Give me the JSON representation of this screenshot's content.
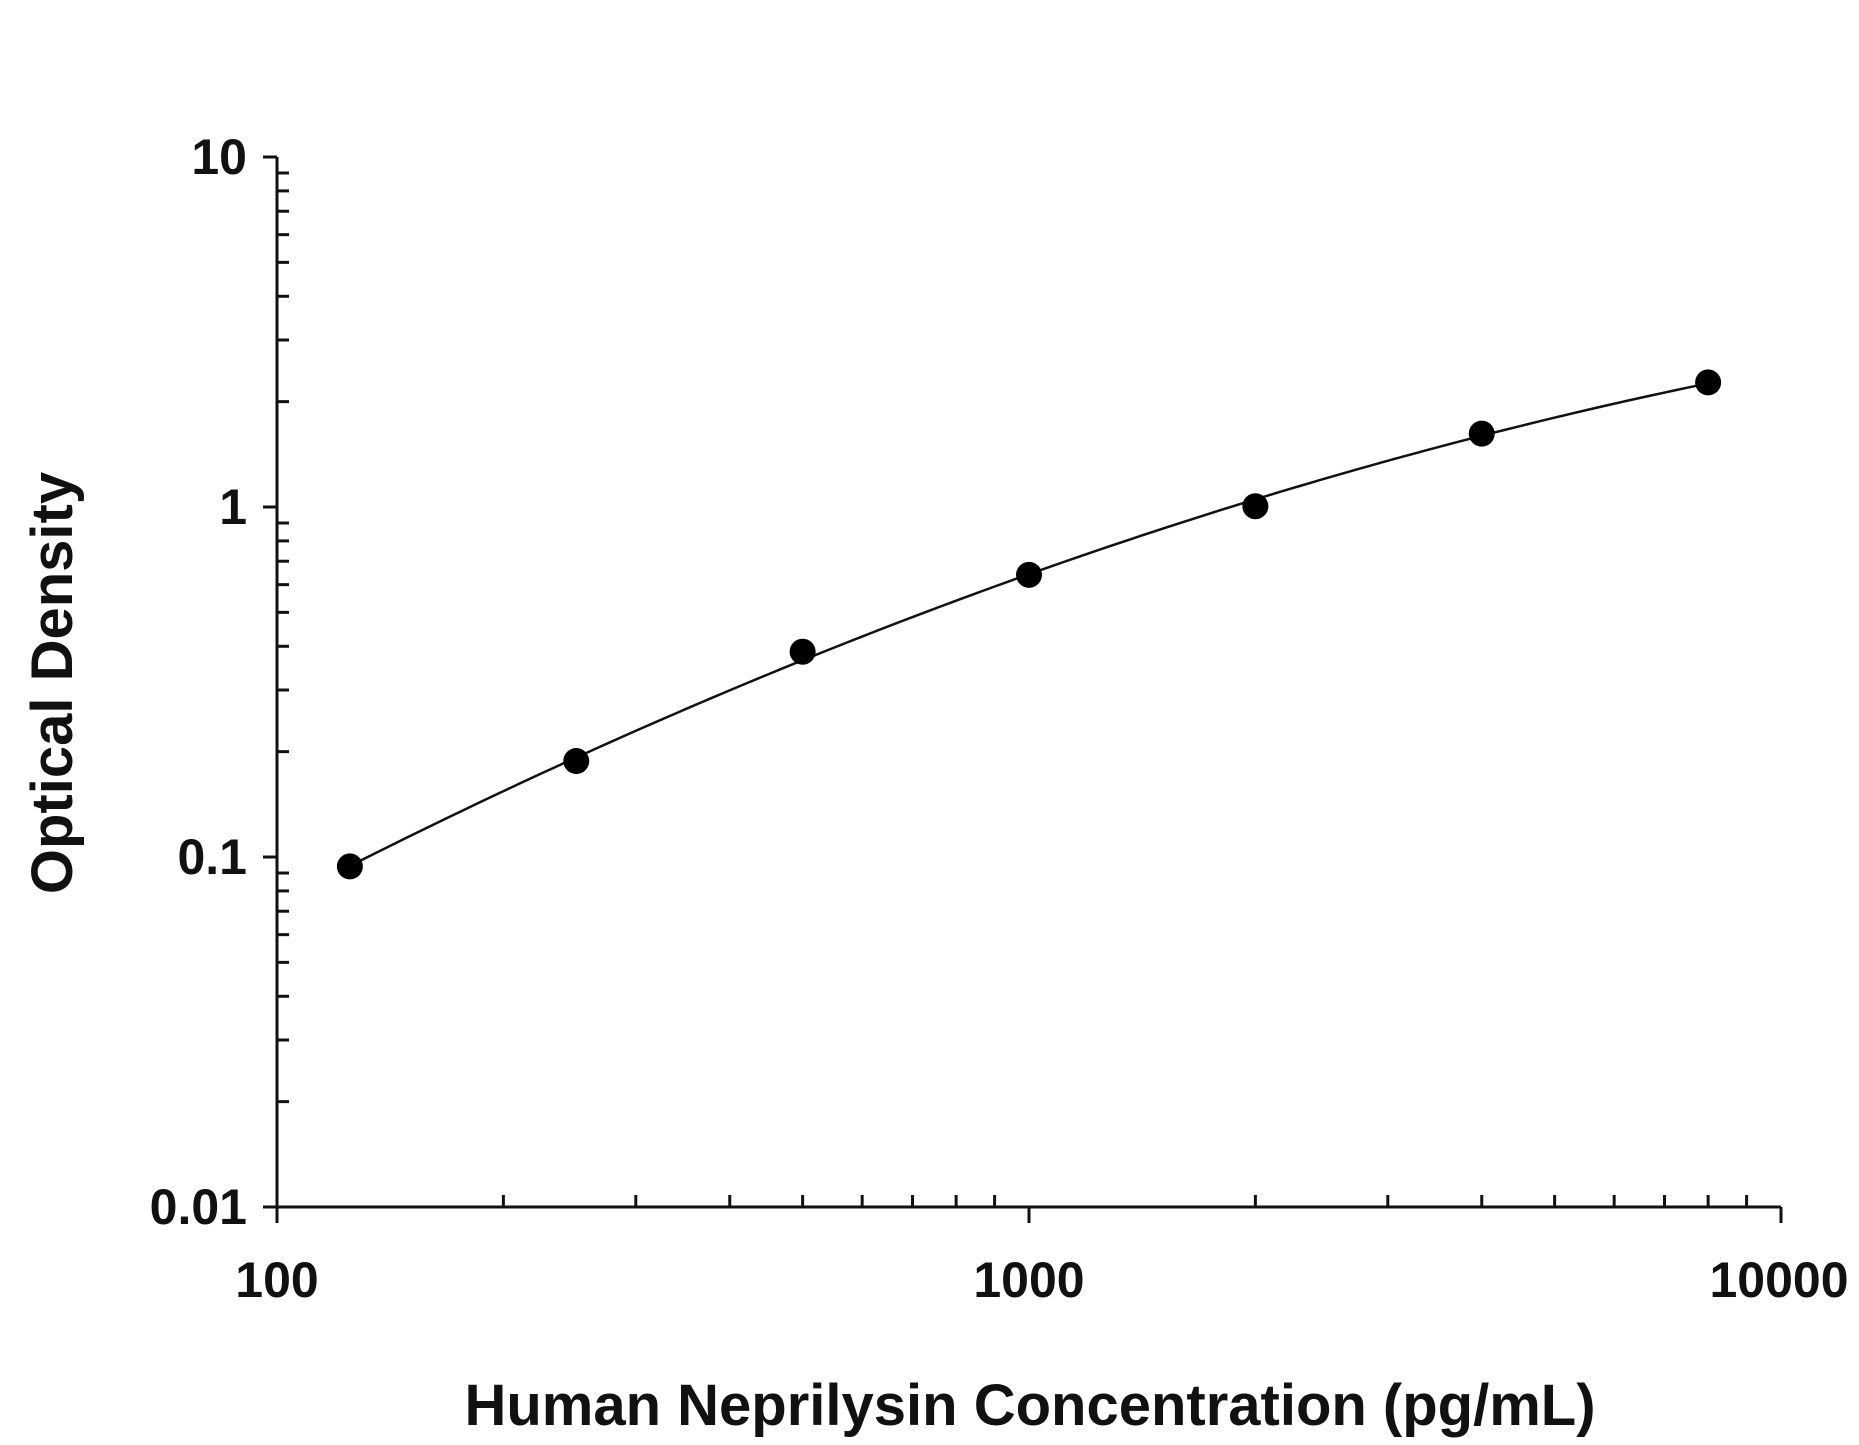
{
  "chart_data": {
    "type": "scatter",
    "x_scale": "log",
    "y_scale": "log",
    "xlabel": "Human Neprilysin Concentration (pg/mL)",
    "ylabel": "Optical Density",
    "xlim": [
      100,
      10000
    ],
    "ylim": [
      0.01,
      10
    ],
    "x_ticks": [
      {
        "value": 100,
        "label": "100"
      },
      {
        "value": 1000,
        "label": "1000"
      },
      {
        "value": 10000,
        "label": "10000"
      }
    ],
    "y_ticks": [
      {
        "value": 0.01,
        "label": "0.01"
      },
      {
        "value": 0.1,
        "label": "0.1"
      },
      {
        "value": 1,
        "label": "1"
      },
      {
        "value": 10,
        "label": "10"
      }
    ],
    "series": [
      {
        "x": [
          125,
          250,
          500,
          1000,
          2000,
          4000,
          8000
        ],
        "y": [
          0.094,
          0.188,
          0.386,
          0.64,
          1.005,
          1.62,
          2.27
        ]
      }
    ],
    "fit_curve": true,
    "grid": false,
    "legend": false,
    "colors": {
      "points": "#000000",
      "curve": "#111111",
      "axes": "#111111"
    }
  }
}
